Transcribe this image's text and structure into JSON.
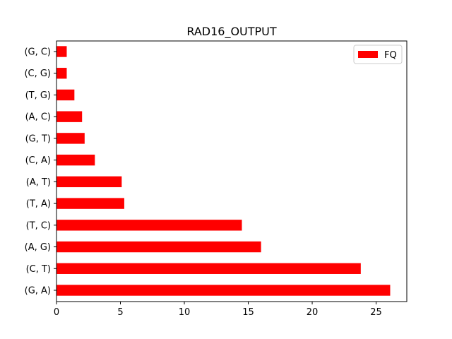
{
  "chart_data": {
    "type": "bar",
    "orientation": "horizontal",
    "title": "RAD16_OUTPUT",
    "xlabel": "",
    "ylabel": "",
    "categories": [
      "(G, A)",
      "(C, T)",
      "(A, G)",
      "(T, C)",
      "(T, A)",
      "(A, T)",
      "(C, A)",
      "(G, T)",
      "(A, C)",
      "(T, G)",
      "(C, G)",
      "(G, C)"
    ],
    "series": [
      {
        "name": "FQ",
        "color": "#ff0000",
        "values": [
          26.1,
          23.8,
          16.0,
          14.5,
          5.3,
          5.1,
          3.0,
          2.2,
          2.0,
          1.4,
          0.8,
          0.8
        ]
      }
    ],
    "xlim": [
      0,
      27.4
    ],
    "xticks": [
      0,
      5,
      10,
      15,
      20,
      25
    ],
    "grid": false,
    "legend_position": "top-right"
  }
}
